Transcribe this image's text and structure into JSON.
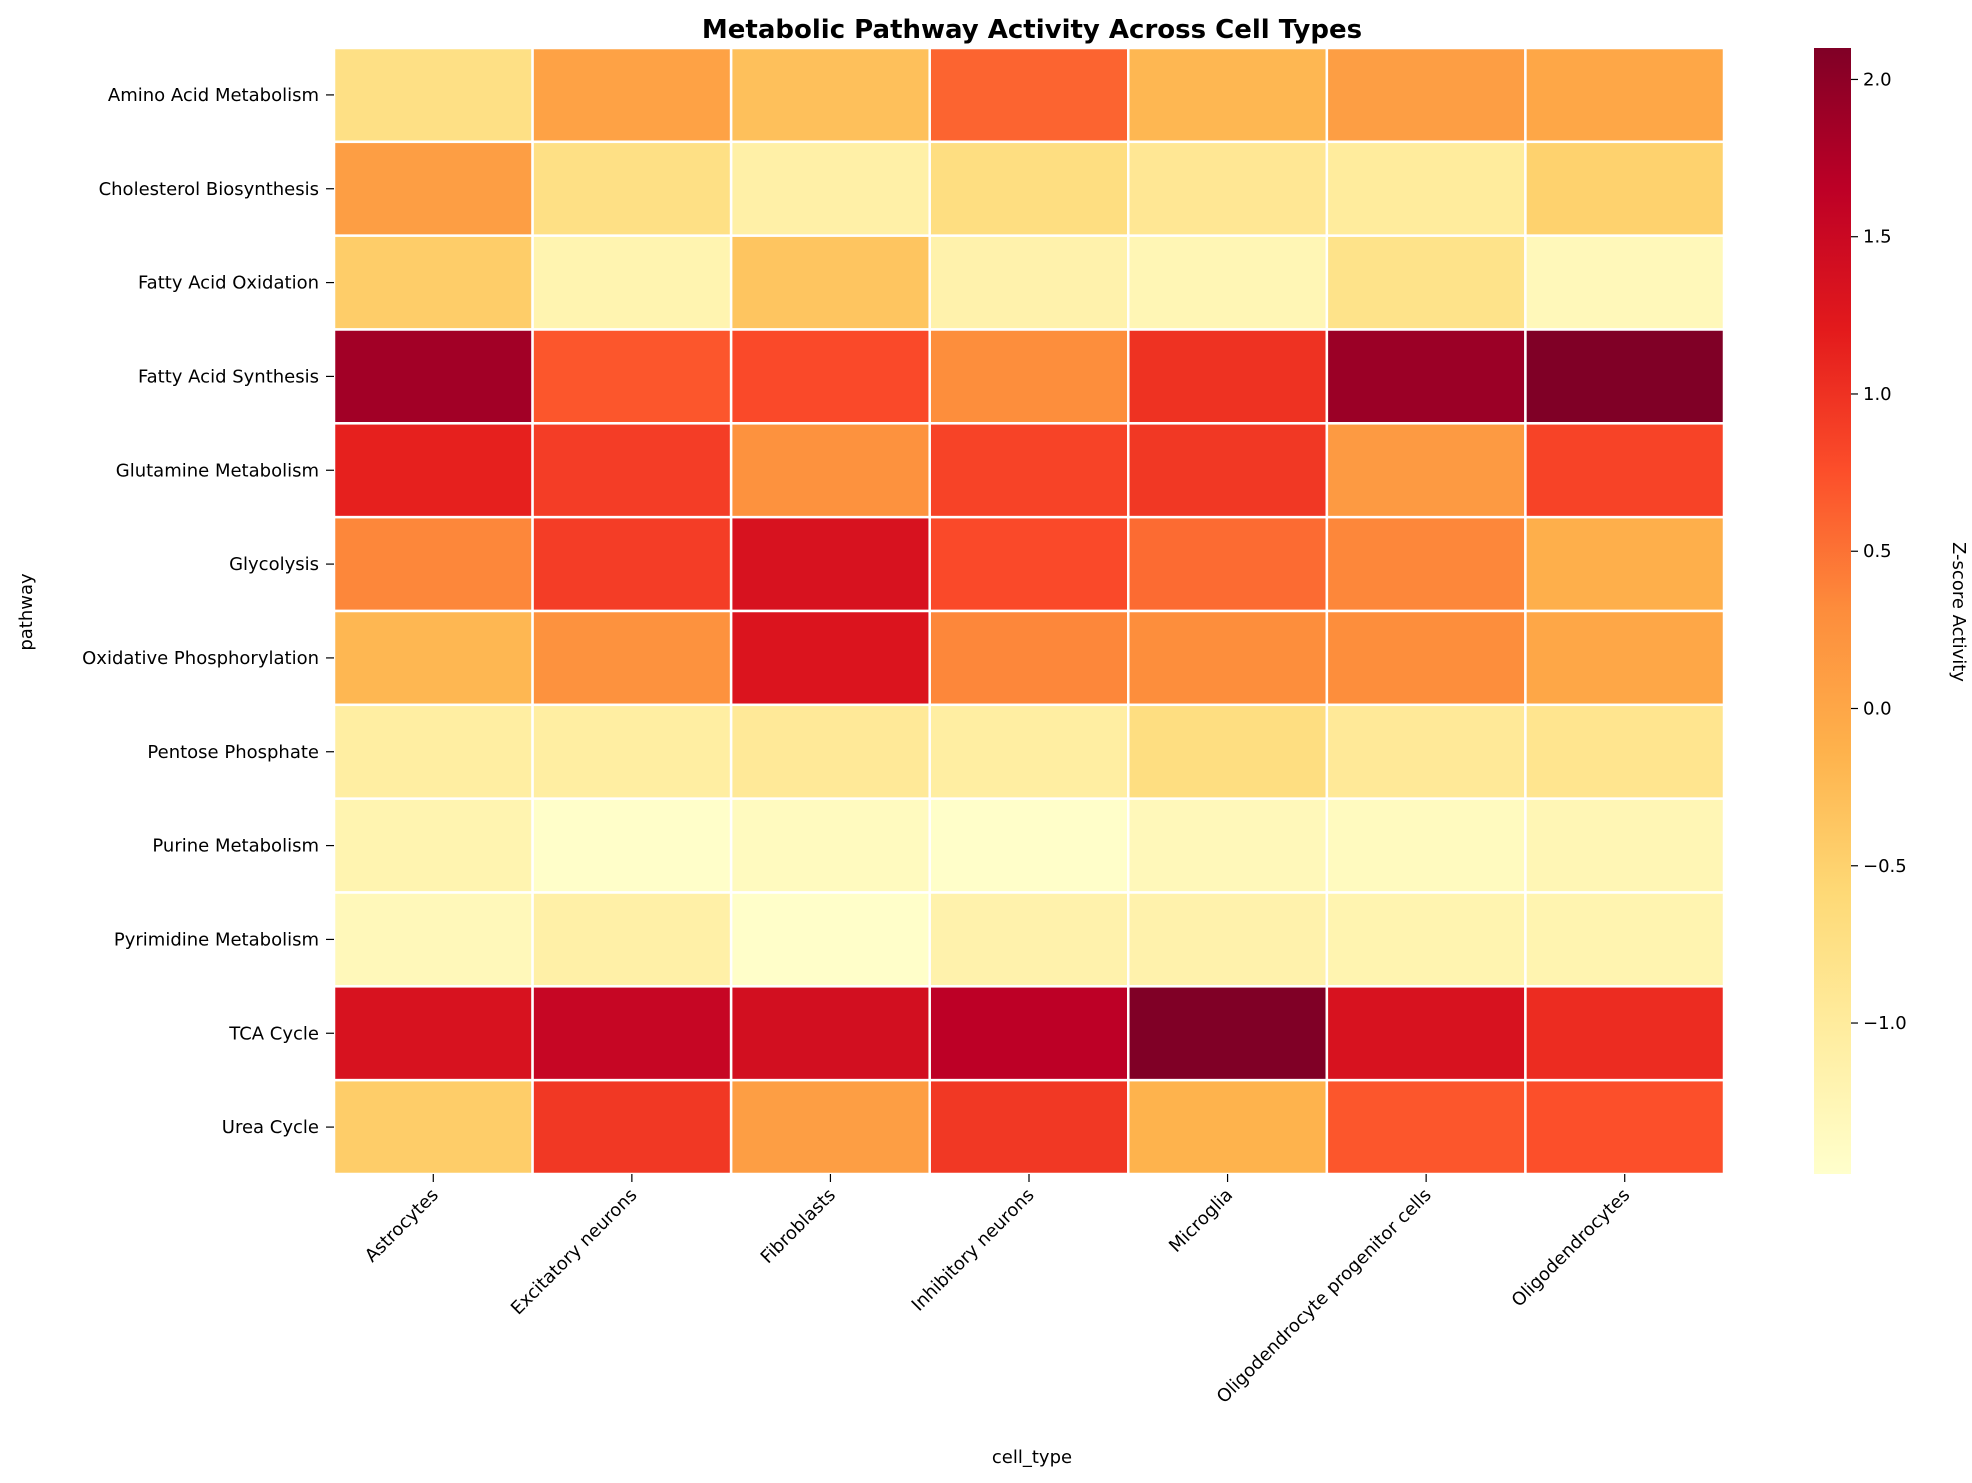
{
  "chart_data": {
    "type": "heatmap",
    "title": "Metabolic Pathway Activity Across Cell Types",
    "xlabel": "cell_type",
    "ylabel": "pathway",
    "colorbar_label": "Z-score Activity",
    "colormap": "YlOrRd",
    "value_range": [
      -1.48,
      2.1
    ],
    "colorbar_ticks": [
      {
        "value": 2.0,
        "label": "2.0"
      },
      {
        "value": 1.5,
        "label": "1.5"
      },
      {
        "value": 1.0,
        "label": "1.0"
      },
      {
        "value": 0.5,
        "label": "0.5"
      },
      {
        "value": 0.0,
        "label": "0.0"
      },
      {
        "value": -0.5,
        "label": "−0.5"
      },
      {
        "value": -1.0,
        "label": "−1.0"
      }
    ],
    "x_categories": [
      "Astrocytes",
      "Excitatory neurons",
      "Fibroblasts",
      "Inhibitory neurons",
      "Microglia",
      "Oligodendrocyte progenitor cells",
      "Oligodendrocytes"
    ],
    "y_categories": [
      "Amino Acid Metabolism",
      "Cholesterol Biosynthesis",
      "Fatty Acid Oxidation",
      "Fatty Acid Synthesis",
      "Glutamine Metabolism",
      "Glycolysis",
      "Oxidative Phosphorylation",
      "Pentose Phosphate",
      "Purine Metabolism",
      "Pyrimidine Metabolism",
      "TCA Cycle",
      "Urea Cycle"
    ],
    "values": [
      [
        -0.75,
        0.05,
        -0.3,
        0.6,
        -0.2,
        0.1,
        0.0
      ],
      [
        0.1,
        -0.75,
        -1.1,
        -0.7,
        -0.9,
        -1.0,
        -0.5
      ],
      [
        -0.45,
        -1.2,
        -0.35,
        -1.15,
        -1.25,
        -0.8,
        -1.3
      ],
      [
        1.85,
        0.7,
        0.8,
        0.3,
        1.0,
        1.9,
        2.1
      ],
      [
        1.15,
        0.9,
        0.25,
        0.85,
        0.95,
        0.15,
        0.85
      ],
      [
        0.35,
        0.9,
        1.35,
        0.8,
        0.55,
        0.35,
        -0.1
      ],
      [
        -0.2,
        0.25,
        1.3,
        0.35,
        0.3,
        0.3,
        0.0
      ],
      [
        -1.05,
        -1.05,
        -0.95,
        -1.05,
        -0.7,
        -0.95,
        -0.85
      ],
      [
        -1.2,
        -1.45,
        -1.35,
        -1.45,
        -1.3,
        -1.35,
        -1.25
      ],
      [
        -1.3,
        -1.1,
        -1.45,
        -1.15,
        -1.15,
        -1.2,
        -1.2
      ],
      [
        1.35,
        1.55,
        1.4,
        1.65,
        2.1,
        1.35,
        1.05
      ],
      [
        -0.45,
        0.95,
        0.1,
        0.95,
        -0.15,
        0.7,
        0.75
      ]
    ]
  }
}
